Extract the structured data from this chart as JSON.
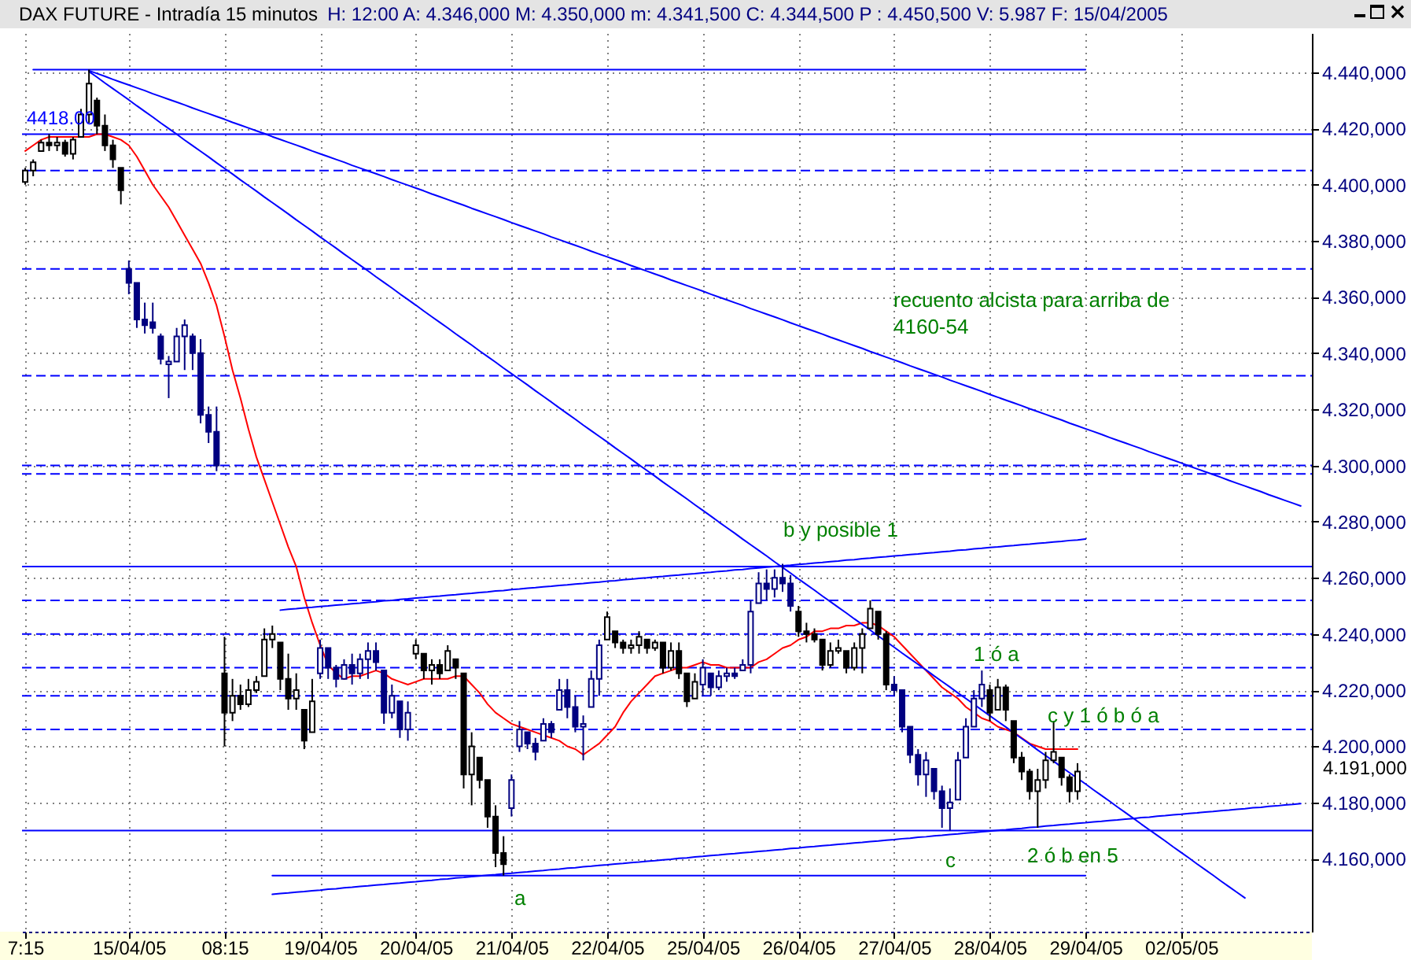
{
  "chart_data": {
    "type": "candlestick",
    "title": "DAX FUTURE - Intradía 15 minutos",
    "subtitle": "H: 12:00 A: 4.346,000 M: 4.350,000 m: 4.341,500 C: 4.344,500 P : 4.450,500 V: 5.987 F: 15/04/2005",
    "categories": [
      "7:15",
      null,
      null,
      null,
      null,
      null,
      null,
      null,
      null,
      null,
      null,
      null,
      null,
      "15/04/05",
      null,
      null,
      null,
      null,
      null,
      null,
      null,
      null,
      null,
      null,
      null,
      "08:15",
      null,
      null,
      null,
      null,
      null,
      null,
      null,
      null,
      null,
      null,
      null,
      "19/04/05",
      null,
      null,
      null,
      null,
      null,
      null,
      null,
      null,
      null,
      null,
      null,
      "20/04/05",
      null,
      null,
      null,
      null,
      null,
      null,
      null,
      null,
      null,
      null,
      null,
      "21/04/05",
      null,
      null,
      null,
      null,
      null,
      null,
      null,
      null,
      null,
      null,
      null,
      "22/04/05",
      null,
      null,
      null,
      null,
      null,
      null,
      null,
      null,
      null,
      null,
      null,
      "25/04/05",
      null,
      null,
      null,
      null,
      null,
      null,
      null,
      null,
      null,
      null,
      null,
      "26/04/05",
      null,
      null,
      null,
      null,
      null,
      null,
      null,
      null,
      null,
      null,
      null,
      "27/04/05",
      null,
      null,
      null,
      null,
      null,
      null,
      null,
      null,
      null,
      null,
      null,
      "28/04/05",
      null,
      null,
      null,
      null,
      null,
      null,
      null,
      null,
      null,
      null,
      null,
      "29/04/05",
      null,
      null,
      null,
      null,
      null,
      null,
      null,
      null,
      null,
      null,
      null,
      "02/05/05",
      null,
      null,
      null,
      null,
      null,
      null,
      null,
      null,
      null,
      null,
      null,
      null,
      null,
      null,
      null,
      null
    ],
    "ohlc": [
      [
        4401,
        4406,
        4400,
        4405
      ],
      [
        4405,
        4409,
        4403,
        4408
      ],
      [
        4412,
        4416,
        4412,
        4415
      ],
      [
        4415,
        4418,
        4412,
        4414
      ],
      [
        4414,
        4417,
        4412,
        4415
      ],
      [
        4415,
        4416,
        4410,
        4411
      ],
      [
        4411,
        4417,
        4409,
        4416
      ],
      [
        4417,
        4427,
        4417,
        4425
      ],
      [
        4425,
        4441,
        4422,
        4436
      ],
      [
        4430,
        4431,
        4418,
        4421
      ],
      [
        4421,
        4425,
        4412,
        4414
      ],
      [
        4414,
        4416,
        4406,
        4409
      ],
      [
        4406,
        4406,
        4393,
        4398
      ],
      [
        4370,
        4373,
        4361,
        4365
      ],
      [
        4365,
        4365,
        4349,
        4352
      ],
      [
        4352,
        4358,
        4347,
        4350
      ],
      [
        4351,
        4358,
        4347,
        4349
      ],
      [
        4346,
        4347,
        4336,
        4338
      ],
      [
        4336,
        4339,
        4324,
        4337
      ],
      [
        4337,
        4349,
        4337,
        4346
      ],
      [
        4346,
        4352,
        4334,
        4350
      ],
      [
        4346,
        4347,
        4334,
        4340
      ],
      [
        4340,
        4345,
        4315,
        4318
      ],
      [
        4318,
        4321,
        4308,
        4312
      ],
      [
        4312,
        4321,
        4298,
        4300
      ],
      [
        4226,
        4239,
        4200,
        4212
      ],
      [
        4212,
        4224,
        4209,
        4218
      ],
      [
        4218,
        4222,
        4213,
        4215
      ],
      [
        4215,
        4224,
        4214,
        4220
      ],
      [
        4220,
        4225,
        4219,
        4223
      ],
      [
        4225,
        4242,
        4225,
        4238
      ],
      [
        4238,
        4243,
        4235,
        4240
      ],
      [
        4237,
        4237,
        4220,
        4224
      ],
      [
        4224,
        4233,
        4213,
        4217
      ],
      [
        4217,
        4226,
        4213,
        4220
      ],
      [
        4213,
        4213,
        4199,
        4202
      ],
      [
        4205,
        4224,
        4205,
        4216
      ],
      [
        4226,
        4238,
        4224,
        4235
      ],
      [
        4235,
        4235,
        4224,
        4228
      ],
      [
        4228,
        4229,
        4221,
        4224
      ],
      [
        4224,
        4231,
        4224,
        4229
      ],
      [
        4229,
        4233,
        4222,
        4226
      ],
      [
        4226,
        4233,
        4224,
        4231
      ],
      [
        4231,
        4237,
        4224,
        4234
      ],
      [
        4234,
        4237,
        4227,
        4230
      ],
      [
        4227,
        4227,
        4208,
        4212
      ],
      [
        4212,
        4222,
        4210,
        4218
      ],
      [
        4216,
        4216,
        4203,
        4206
      ],
      [
        4206,
        4216,
        4202,
        4212
      ],
      [
        4233,
        4238,
        4231,
        4236
      ],
      [
        4233,
        4233,
        4224,
        4227
      ],
      [
        4227,
        4231,
        4222,
        4229
      ],
      [
        4229,
        4231,
        4224,
        4226
      ],
      [
        4227,
        4236,
        4227,
        4234
      ],
      [
        4231,
        4231,
        4224,
        4228
      ],
      [
        4226,
        4226,
        4185,
        4190
      ],
      [
        4190,
        4205,
        4179,
        4200
      ],
      [
        4196,
        4196,
        4185,
        4188
      ],
      [
        4188,
        4188,
        4171,
        4175
      ],
      [
        4175,
        4179,
        4157,
        4162
      ],
      [
        4162,
        4168,
        4154,
        4158
      ],
      [
        4178,
        4190,
        4175,
        4188
      ],
      [
        4200,
        4209,
        4198,
        4206
      ],
      [
        4205,
        4205,
        4199,
        4201
      ],
      [
        4201,
        4203,
        4195,
        4198
      ],
      [
        4202,
        4210,
        4202,
        4208
      ],
      [
        4208,
        4209,
        4203,
        4205
      ],
      [
        4213,
        4224,
        4213,
        4220
      ],
      [
        4220,
        4224,
        4210,
        4214
      ],
      [
        4214,
        4218,
        4205,
        4207
      ],
      [
        4207,
        4211,
        4195,
        4208
      ],
      [
        4214,
        4227,
        4214,
        4224
      ],
      [
        4224,
        4238,
        4218,
        4236
      ],
      [
        4238,
        4248,
        4238,
        4246
      ],
      [
        4241,
        4241,
        4235,
        4237
      ],
      [
        4237,
        4238,
        4233,
        4235
      ],
      [
        4235,
        4238,
        4233,
        4236
      ],
      [
        4236,
        4241,
        4233,
        4239
      ],
      [
        4238,
        4238,
        4233,
        4235
      ],
      [
        4235,
        4238,
        4234,
        4237
      ],
      [
        4237,
        4237,
        4226,
        4228
      ],
      [
        4228,
        4237,
        4227,
        4234
      ],
      [
        4234,
        4237,
        4224,
        4226
      ],
      [
        4226,
        4226,
        4214,
        4216
      ],
      [
        4217,
        4226,
        4217,
        4223
      ],
      [
        4222,
        4231,
        4218,
        4228
      ],
      [
        4226,
        4226,
        4218,
        4221
      ],
      [
        4221,
        4227,
        4220,
        4225
      ],
      [
        4225,
        4228,
        4223,
        4226
      ],
      [
        4226,
        4228,
        4224,
        4225
      ],
      [
        4227,
        4231,
        4227,
        4229
      ],
      [
        4229,
        4252,
        4226,
        4248
      ],
      [
        4251,
        4262,
        4251,
        4258
      ],
      [
        4258,
        4263,
        4252,
        4256
      ],
      [
        4256,
        4263,
        4253,
        4260
      ],
      [
        4260,
        4265,
        4255,
        4258
      ],
      [
        4258,
        4261,
        4248,
        4250
      ],
      [
        4248,
        4250,
        4239,
        4241
      ],
      [
        4241,
        4244,
        4237,
        4240
      ],
      [
        4240,
        4242,
        4237,
        4238
      ],
      [
        4238,
        4238,
        4227,
        4229
      ],
      [
        4229,
        4237,
        4228,
        4234
      ],
      [
        4234,
        4238,
        4233,
        4235
      ],
      [
        4234,
        4234,
        4226,
        4228
      ],
      [
        4228,
        4237,
        4227,
        4235
      ],
      [
        4235,
        4242,
        4226,
        4240
      ],
      [
        4242,
        4252,
        4242,
        4249
      ],
      [
        4248,
        4248,
        4238,
        4240
      ],
      [
        4240,
        4241,
        4220,
        4222
      ],
      [
        4222,
        4225,
        4218,
        4220
      ],
      [
        4220,
        4220,
        4205,
        4207
      ],
      [
        4207,
        4207,
        4194,
        4197
      ],
      [
        4197,
        4199,
        4186,
        4190
      ],
      [
        4190,
        4198,
        4182,
        4195
      ],
      [
        4192,
        4192,
        4181,
        4184
      ],
      [
        4184,
        4186,
        4171,
        4178
      ],
      [
        4178,
        4185,
        4170,
        4180
      ],
      [
        4181,
        4198,
        4181,
        4195
      ],
      [
        4196,
        4210,
        4196,
        4207
      ],
      [
        4207,
        4220,
        4207,
        4217
      ],
      [
        4217,
        4227,
        4214,
        4222
      ],
      [
        4220,
        4222,
        4209,
        4212
      ],
      [
        4213,
        4224,
        4213,
        4221
      ],
      [
        4221,
        4222,
        4209,
        4213
      ],
      [
        4209,
        4209,
        4194,
        4196
      ],
      [
        4196,
        4198,
        4188,
        4191
      ],
      [
        4191,
        4192,
        4181,
        4184
      ],
      [
        4184,
        4192,
        4171,
        4188
      ],
      [
        4188,
        4198,
        4185,
        4195
      ],
      [
        4195,
        4209,
        4194,
        4198
      ],
      [
        4196,
        4196,
        4186,
        4189
      ],
      [
        4189,
        4190,
        4180,
        4184
      ],
      [
        4184,
        4194,
        4181,
        4191
      ],
      null,
      null,
      null,
      null,
      null,
      null,
      null,
      null,
      null,
      null,
      null,
      null,
      null,
      null,
      null,
      null,
      null,
      null,
      null,
      null,
      null,
      null,
      null,
      null,
      null,
      null,
      null,
      null,
      null
    ],
    "colors": [
      "#000000",
      "#000000",
      "#000000",
      "#000000",
      "#000000",
      "#000000",
      "#000000",
      "#000000",
      "#000000",
      "#000000",
      "#000000",
      "#000000",
      "#000000",
      "#000080",
      "#000080",
      "#000080",
      "#000080",
      "#000080",
      "#000080",
      "#000080",
      "#000080",
      "#000080",
      "#000080",
      "#000080",
      "#000080",
      "#000000",
      "#000000",
      "#000000",
      "#000000",
      "#000000",
      "#000000",
      "#000000",
      "#000000",
      "#000000",
      "#000000",
      "#000000",
      "#000000",
      "#000080",
      "#000080",
      "#000080",
      "#000080",
      "#000080",
      "#000080",
      "#000080",
      "#000080",
      "#000080",
      "#000080",
      "#000080",
      "#000080",
      "#000000",
      "#000000",
      "#000000",
      "#000000",
      "#000000",
      "#000000",
      "#000000",
      "#000000",
      "#000000",
      "#000000",
      "#000000",
      "#000000",
      "#000080",
      "#000080",
      "#000080",
      "#000080",
      "#000080",
      "#000080",
      "#000080",
      "#000080",
      "#000080",
      "#000080",
      "#000080",
      "#000080",
      "#000000",
      "#000000",
      "#000000",
      "#000000",
      "#000000",
      "#000000",
      "#000000",
      "#000000",
      "#000000",
      "#000000",
      "#000000",
      "#000000",
      "#000080",
      "#000080",
      "#000080",
      "#000080",
      "#000080",
      "#000080",
      "#000080",
      "#000080",
      "#000080",
      "#000080",
      "#000080",
      "#000080",
      "#000000",
      "#000000",
      "#000000",
      "#000000",
      "#000000",
      "#000000",
      "#000000",
      "#000000",
      "#000000",
      "#000000",
      "#000000",
      "#000000",
      "#000080",
      "#000080",
      "#000080",
      "#000080",
      "#000080",
      "#000080",
      "#000080",
      "#000080",
      "#000080",
      "#000080",
      "#000080",
      "#000080",
      "#000000",
      "#000000",
      "#000000",
      "#000000",
      "#000000",
      "#000000",
      "#000000",
      "#000000",
      "#000000",
      "#000000",
      "#000000",
      "#000000",
      null,
      null,
      null,
      null,
      null,
      null,
      null,
      null,
      null,
      null,
      null,
      null,
      null,
      null,
      null,
      null,
      null,
      null,
      null,
      null,
      null,
      null,
      null,
      null,
      null,
      null,
      null,
      null,
      null
    ],
    "series": [
      {
        "type": "line",
        "color": "#ff0000",
        "values": [
          4412,
          4414,
          4416,
          4417,
          4417,
          4417,
          4417,
          4417,
          4417,
          4418,
          4418,
          4417,
          4416,
          4414,
          4410,
          4405,
          4400,
          4396,
          4392,
          4387,
          4382,
          4377,
          4372,
          4365,
          4357,
          4346,
          4334,
          4324,
          4313,
          4303,
          4295,
          4287,
          4279,
          4271,
          4264,
          4253,
          4244,
          4236,
          4229,
          4226,
          4224,
          4225,
          4225,
          4226,
          4227,
          4226,
          4224,
          4223,
          4222,
          4223,
          4224,
          4224,
          4224,
          4224,
          4225,
          4225,
          4222,
          4219,
          4215,
          4212,
          4210,
          4208,
          4207,
          4206,
          4205,
          4204,
          4203,
          4202,
          4200,
          4199,
          4197,
          4199,
          4201,
          4204,
          4207,
          4212,
          4216,
          4219,
          4222,
          4225,
          4226,
          4227,
          4228,
          4228,
          4229,
          4230,
          4229,
          4229,
          4228,
          4228,
          4228,
          4228,
          4230,
          4231,
          4233,
          4235,
          4236,
          4238,
          4239,
          4241,
          4241,
          4242,
          4242,
          4243,
          4243,
          4244,
          4244,
          4243,
          4241,
          4239,
          4236,
          4233,
          4230,
          4227,
          4224,
          4221,
          4219,
          4217,
          4214,
          4212,
          4210,
          4209,
          4207,
          4206,
          4205,
          4203,
          4201,
          4200,
          4199,
          4199,
          4199,
          4199,
          4199,
          null,
          null,
          null,
          null,
          null,
          null,
          null,
          null,
          null,
          null,
          null,
          null,
          null,
          null,
          null,
          null,
          null,
          null,
          null,
          null,
          null,
          null,
          null,
          null,
          null,
          null,
          null,
          null,
          null
        ]
      },
      {
        "type": "line",
        "color": "#0000ff",
        "values": [
          null,
          null,
          null,
          null,
          null,
          null,
          null,
          null,
          4440.6,
          4439.6,
          4438.6,
          4437.5,
          4436.5,
          4435.5,
          4434.5,
          4433.5,
          4432.4,
          4431.4,
          4430.4,
          4429.4,
          4428.4,
          4427.3,
          4426.3,
          4425.3,
          4424.3,
          4423.3,
          4422.2,
          4421.2,
          4420.2,
          4419.2,
          4418.2,
          4417.1,
          4416.1,
          4415.1,
          4414.1,
          4413.1,
          4412.0,
          4411.0,
          4410.0,
          4409.0,
          4408.0,
          4406.9,
          4405.9,
          4404.9,
          4403.9,
          4402.9,
          4401.8,
          4400.8,
          4399.8,
          4398.8,
          4397.8,
          4396.7,
          4395.7,
          4394.7,
          4393.7,
          4392.7,
          4391.6,
          4390.6,
          4389.6,
          4388.6,
          4387.6,
          4386.5,
          4385.5,
          4384.5,
          4383.5,
          4382.5,
          4381.4,
          4380.4,
          4379.4,
          4378.4,
          4377.4,
          4376.3,
          4375.3,
          4374.3,
          4373.3,
          4372.3,
          4371.2,
          4370.2,
          4369.2,
          4368.2,
          4367.2,
          4366.1,
          4365.1,
          4364.1,
          4363.1,
          4362.1,
          4361.0,
          4360.0,
          4359.0,
          4358.0,
          4357.0,
          4355.9,
          4354.9,
          4353.9,
          4352.9,
          4351.9,
          4350.8,
          4349.8,
          4348.8,
          4347.8,
          4346.8,
          4345.7,
          4344.7,
          4343.7,
          4342.7,
          4341.7,
          4340.6,
          4339.6,
          4338.6,
          4337.6,
          4336.6,
          4335.5,
          4334.5,
          4333.5,
          4332.5,
          4331.5,
          4330.4,
          4329.4,
          4328.4,
          4327.4,
          4326.4,
          4325.3,
          4324.3,
          4323.3,
          4322.3,
          4321.3,
          4320.2,
          4319.2,
          4318.2,
          4317.2,
          4316.2,
          4315.1,
          4314.1,
          4313.1,
          4312.1,
          4311.1,
          4310.0,
          4309.0,
          4308.0,
          4307.0,
          4306.0,
          4304.9,
          4303.9,
          4302.9,
          4301.9,
          4300.9,
          4299.8,
          4298.8,
          4297.8,
          4296.8,
          4295.8,
          4294.7,
          4293.7,
          4292.7,
          4291.7,
          4290.7,
          4289.6,
          4288.6,
          4287.6,
          4286.6,
          4285.6,
          null
        ]
      },
      {
        "type": "line",
        "color": "#0000ff",
        "values": [
          null,
          null,
          null,
          null,
          null,
          null,
          null,
          null,
          4440.3,
          4438.3,
          4436.2,
          4434.2,
          4432.2,
          4430.2,
          4428.1,
          4426.1,
          4424.1,
          4422.0,
          4420.0,
          4418.0,
          4415.9,
          4413.9,
          4411.9,
          4409.9,
          4407.8,
          4405.8,
          4403.8,
          4401.7,
          4399.7,
          4397.7,
          4395.6,
          4393.6,
          4391.6,
          4389.6,
          4387.5,
          4385.5,
          4383.5,
          4381.4,
          4379.4,
          4377.4,
          4375.3,
          4373.3,
          4371.3,
          4369.3,
          4367.2,
          4365.2,
          4363.2,
          4361.1,
          4359.1,
          4357.1,
          4355.0,
          4353.0,
          4351.0,
          4349.0,
          4346.9,
          4344.9,
          4342.9,
          4340.8,
          4338.8,
          4336.8,
          4334.7,
          4332.7,
          4330.7,
          4328.7,
          4326.6,
          4324.6,
          4322.6,
          4320.5,
          4318.5,
          4316.5,
          4314.4,
          4312.4,
          4310.4,
          4308.4,
          4306.3,
          4304.3,
          4302.3,
          4300.2,
          4298.2,
          4296.2,
          4294.1,
          4292.1,
          4290.1,
          4288.1,
          4286.0,
          4284.0,
          4282.0,
          4279.9,
          4277.9,
          4275.9,
          4273.8,
          4271.8,
          4269.8,
          4267.8,
          4265.7,
          4263.7,
          4261.7,
          4259.6,
          4257.6,
          4255.6,
          4253.5,
          4251.5,
          4249.5,
          4247.5,
          4245.4,
          4243.4,
          4241.4,
          4239.3,
          4237.3,
          4235.3,
          4233.2,
          4231.2,
          4229.2,
          4227.2,
          4225.1,
          4223.1,
          4221.1,
          4219.0,
          4217.0,
          4215.0,
          4212.9,
          4210.9,
          4208.9,
          4206.9,
          4204.8,
          4202.8,
          4200.8,
          4198.7,
          4196.7,
          4194.7,
          4192.6,
          4190.6,
          4188.6,
          4186.6,
          4184.5,
          4182.5,
          4180.5,
          4178.4,
          4176.4,
          4174.4,
          4172.3,
          4170.3,
          4168.3,
          4166.3,
          4164.2,
          4162.2,
          4160.2,
          4158.1,
          4156.1,
          4154.1,
          4152.0,
          4150.0,
          4148.0,
          4146.0,
          null,
          null,
          null,
          null,
          null,
          null,
          null,
          null
        ]
      },
      {
        "type": "line",
        "color": "#0000ff",
        "values": [
          null,
          null,
          null,
          null,
          null,
          null,
          null,
          null,
          null,
          null,
          null,
          null,
          null,
          null,
          null,
          null,
          null,
          null,
          null,
          null,
          null,
          null,
          null,
          null,
          null,
          null,
          null,
          null,
          null,
          null,
          null,
          null,
          4248.5,
          4248.8,
          4249.0,
          4249.3,
          4249.5,
          4249.8,
          4250.0,
          4250.3,
          4250.5,
          4250.8,
          4251.0,
          4251.3,
          4251.5,
          4251.8,
          4252.0,
          4252.3,
          4252.5,
          4252.8,
          4253.0,
          4253.3,
          4253.5,
          4253.8,
          4254.0,
          4254.3,
          4254.5,
          4254.8,
          4255.0,
          4255.3,
          4255.5,
          4255.8,
          4256.0,
          4256.3,
          4256.5,
          4256.8,
          4257.0,
          4257.3,
          4257.5,
          4257.8,
          4258.0,
          4258.3,
          4258.5,
          4258.8,
          4259.0,
          4259.3,
          4259.5,
          4259.8,
          4260.0,
          4260.3,
          4260.5,
          4260.8,
          4261.0,
          4261.3,
          4261.5,
          4261.8,
          4262.0,
          4262.3,
          4262.5,
          4262.8,
          4263.0,
          4263.3,
          4263.5,
          4263.8,
          4264.0,
          4264.3,
          4264.5,
          4264.8,
          4265.0,
          4265.3,
          4265.5,
          4265.8,
          4266.0,
          4266.3,
          4266.5,
          4266.8,
          4267.0,
          4267.3,
          4267.5,
          4267.8,
          4268.0,
          4268.3,
          4268.5,
          4268.8,
          4269.0,
          4269.3,
          4269.5,
          4269.8,
          4270.0,
          4270.3,
          4270.5,
          4270.8,
          4271.0,
          4271.3,
          4271.5,
          4271.8,
          4272.0,
          4272.3,
          4272.5,
          4272.8,
          4273.0,
          4273.3,
          4273.5,
          4273.8,
          null,
          null,
          null,
          null,
          null,
          null,
          null,
          null,
          null,
          null,
          null,
          null,
          null,
          null,
          null,
          null,
          null,
          null,
          null,
          null,
          null,
          null,
          null,
          null,
          null,
          null,
          null,
          null
        ]
      },
      {
        "type": "line",
        "color": "#0000ff",
        "values": [
          null,
          null,
          null,
          null,
          null,
          null,
          null,
          null,
          null,
          null,
          null,
          null,
          null,
          null,
          null,
          null,
          null,
          null,
          null,
          null,
          null,
          null,
          null,
          null,
          null,
          null,
          null,
          null,
          null,
          null,
          null,
          4147.3,
          4147.6,
          4147.8,
          4148.1,
          4148.3,
          4148.6,
          4148.8,
          4149.1,
          4149.3,
          4149.6,
          4149.8,
          4150.1,
          4150.3,
          4150.6,
          4150.8,
          4151.1,
          4151.3,
          4151.6,
          4151.8,
          4152.1,
          4152.3,
          4152.6,
          4152.8,
          4153.1,
          4153.3,
          4153.6,
          4153.8,
          4154.1,
          4154.3,
          4154.6,
          4154.8,
          4155.1,
          4155.3,
          4155.6,
          4155.8,
          4156.1,
          4156.3,
          4156.6,
          4156.8,
          4157.1,
          4157.3,
          4157.6,
          4157.8,
          4158.1,
          4158.3,
          4158.6,
          4158.8,
          4159.1,
          4159.3,
          4159.6,
          4159.8,
          4160.1,
          4160.3,
          4160.6,
          4160.8,
          4161.1,
          4161.3,
          4161.6,
          4161.8,
          4162.1,
          4162.3,
          4162.6,
          4162.8,
          4163.1,
          4163.3,
          4163.6,
          4163.8,
          4164.1,
          4164.3,
          4164.6,
          4164.8,
          4165.1,
          4165.3,
          4165.6,
          4165.8,
          4166.1,
          4166.3,
          4166.6,
          4166.8,
          4167.1,
          4167.3,
          4167.6,
          4167.8,
          4168.1,
          4168.3,
          4168.6,
          4168.8,
          4169.1,
          4169.3,
          4169.6,
          4169.8,
          4170.1,
          4170.3,
          4170.6,
          4170.8,
          4171.1,
          4171.3,
          4171.6,
          4171.8,
          4172.1,
          4172.3,
          4172.6,
          4172.8,
          4173.1,
          4173.3,
          4173.6,
          4173.8,
          4174.1,
          4174.3,
          4174.6,
          4174.8,
          4175.1,
          4175.3,
          4175.6,
          4175.8,
          4176.1,
          4176.3,
          4176.6,
          4176.8,
          4177.1,
          4177.3,
          4177.6,
          4177.8,
          4178.1,
          4178.3,
          4178.6,
          4178.8,
          4179.1,
          4179.3,
          4179.6,
          null
        ]
      },
      {
        "type": "line",
        "color": "#0000ff",
        "values": [
          null,
          4441,
          4441,
          4441,
          4441,
          4441,
          4441,
          4441,
          4441,
          4441,
          4441,
          4441,
          4441,
          4441,
          4441,
          4441,
          4441,
          4441,
          4441,
          4441,
          4441,
          4441,
          4441,
          4441,
          4441,
          4441,
          4441,
          4441,
          4441,
          4441,
          4441,
          4441,
          4441,
          4441,
          4441,
          4441,
          4441,
          4441,
          4441,
          4441,
          4441,
          4441,
          4441,
          4441,
          4441,
          4441,
          4441,
          4441,
          4441,
          4441,
          4441,
          4441,
          4441,
          4441,
          4441,
          4441,
          4441,
          4441,
          4441,
          4441,
          4441,
          4441,
          4441,
          4441,
          4441,
          4441,
          4441,
          4441,
          4441,
          4441,
          4441,
          4441,
          4441,
          4441,
          4441,
          4441,
          4441,
          4441,
          4441,
          4441,
          4441,
          4441,
          4441,
          4441,
          4441,
          4441,
          4441,
          4441,
          4441,
          4441,
          4441,
          4441,
          4441,
          4441,
          4441,
          4441,
          4441,
          4441,
          4441,
          4441,
          4441,
          4441,
          4441,
          4441,
          4441,
          4441,
          4441,
          4441,
          4441,
          4441,
          4441,
          4441,
          4441,
          4441,
          4441,
          4441,
          4441,
          4441,
          4441,
          4441,
          4441,
          4441,
          4441,
          4441,
          4441,
          4441,
          4441,
          4441,
          4441,
          4441,
          4441,
          4441,
          4441,
          4441,
          null,
          null,
          null,
          null,
          null,
          null,
          null,
          null,
          null,
          null,
          null,
          null,
          null,
          null,
          null,
          null,
          null,
          null,
          null,
          null,
          null,
          null,
          null,
          null,
          null,
          null,
          null,
          null
        ]
      },
      {
        "type": "line",
        "color": "#0000ff",
        "values": [
          null,
          null,
          null,
          null,
          null,
          null,
          null,
          null,
          null,
          null,
          null,
          null,
          null,
          null,
          null,
          null,
          null,
          null,
          null,
          null,
          null,
          null,
          null,
          null,
          null,
          null,
          null,
          null,
          null,
          null,
          null,
          4154,
          4154,
          4154,
          4154,
          4154,
          4154,
          4154,
          4154,
          4154,
          4154,
          4154,
          4154,
          4154,
          4154,
          4154,
          4154,
          4154,
          4154,
          4154,
          4154,
          4154,
          4154,
          4154,
          4154,
          4154,
          4154,
          4154,
          4154,
          4154,
          4154,
          4154,
          4154,
          4154,
          4154,
          4154,
          4154,
          4154,
          4154,
          4154,
          4154,
          4154,
          4154,
          4154,
          4154,
          4154,
          4154,
          4154,
          4154,
          4154,
          4154,
          4154,
          4154,
          4154,
          4154,
          4154,
          4154,
          4154,
          4154,
          4154,
          4154,
          4154,
          4154,
          4154,
          4154,
          4154,
          4154,
          4154,
          4154,
          4154,
          4154,
          4154,
          4154,
          4154,
          4154,
          4154,
          4154,
          4154,
          4154,
          4154,
          4154,
          4154,
          4154,
          4154,
          4154,
          4154,
          4154,
          4154,
          4154,
          4154,
          4154,
          4154,
          4154,
          4154,
          4154,
          4154,
          4154,
          4154,
          4154,
          4154,
          4154,
          4154,
          4154,
          4154,
          null,
          null,
          null,
          null,
          null,
          null,
          null,
          null,
          null,
          null,
          null,
          null,
          null,
          null,
          null,
          null,
          null,
          null,
          null,
          null,
          null,
          null,
          null,
          null,
          null,
          null,
          null,
          null
        ]
      }
    ],
    "ylim": [
      4134,
      4454
    ],
    "yticks": [
      {
        "value": 4160,
        "label": "4.160,000"
      },
      {
        "value": 4180,
        "label": "4.180,000"
      },
      {
        "value": 4200,
        "label": "4.200,000"
      },
      {
        "value": 4220,
        "label": "4.220,000"
      },
      {
        "value": 4240,
        "label": "4.240,000"
      },
      {
        "value": 4260,
        "label": "4.260,000"
      },
      {
        "value": 4280,
        "label": "4.280,000"
      },
      {
        "value": 4300,
        "label": "4.300,000"
      },
      {
        "value": 4320,
        "label": "4.320,000"
      },
      {
        "value": 4340,
        "label": "4.340,000"
      },
      {
        "value": 4360,
        "label": "4.360,000"
      },
      {
        "value": 4380,
        "label": "4.380,000"
      },
      {
        "value": 4400,
        "label": "4.400,000"
      },
      {
        "value": 4420,
        "label": "4.420,000"
      },
      {
        "value": 4440,
        "label": "4.440,000"
      }
    ],
    "grid": true,
    "ref_lines": [
      {
        "axis": "y",
        "value": 4418,
        "label": "4418.00",
        "color": "#0000ff",
        "line_style": "solid"
      },
      {
        "axis": "y",
        "value": 4405,
        "color": "#0000ff",
        "line_style": "dashed"
      },
      {
        "axis": "y",
        "value": 4370,
        "color": "#0000ff",
        "line_style": "dashed"
      },
      {
        "axis": "y",
        "value": 4332,
        "color": "#0000ff",
        "line_style": "dashed"
      },
      {
        "axis": "y",
        "value": 4300,
        "color": "#0000ff",
        "line_style": "dashed"
      },
      {
        "axis": "y",
        "value": 4297,
        "color": "#0000ff",
        "line_style": "dashed"
      },
      {
        "axis": "y",
        "value": 4264,
        "color": "#0000ff",
        "line_style": "solid"
      },
      {
        "axis": "y",
        "value": 4252,
        "color": "#0000ff",
        "line_style": "dashed"
      },
      {
        "axis": "y",
        "value": 4240,
        "color": "#0000ff",
        "line_style": "dashed"
      },
      {
        "axis": "y",
        "value": 4228,
        "color": "#0000ff",
        "line_style": "dashed"
      },
      {
        "axis": "y",
        "value": 4218,
        "color": "#0000ff",
        "line_style": "dashed"
      },
      {
        "axis": "y",
        "value": 4206,
        "color": "#0000ff",
        "line_style": "dashed"
      },
      {
        "axis": "y",
        "value": 4170,
        "color": "#0000ff",
        "line_style": "solid"
      }
    ],
    "annotations": [
      "recuento alcista para arriba de\n4160-54",
      "b y posible 1",
      "1 ó a",
      "c y 1 ó b ó a",
      "4.191,000",
      "2 ó b en 5",
      "c",
      "a"
    ]
  }
}
